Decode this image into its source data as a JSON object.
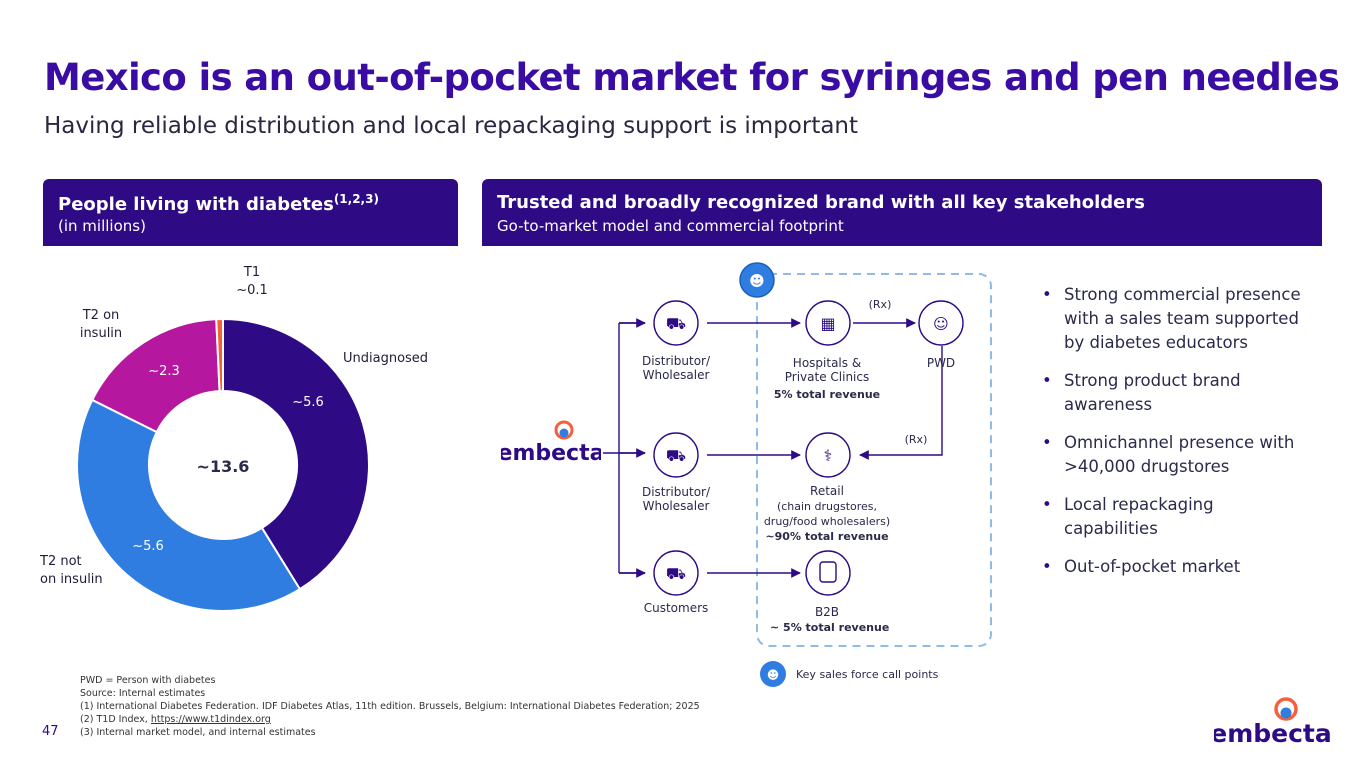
{
  "title": "Mexico is an out-of-pocket market for syringes and pen needles",
  "subtitle": "Having reliable distribution and local repackaging support is important",
  "left_panel": {
    "title": "People living with diabetes",
    "title_sup": "(1,2,3)",
    "subtitle": "(in millions)"
  },
  "right_panel": {
    "title": "Trusted and broadly recognized brand with all key stakeholders",
    "subtitle": "Go-to-market model and commercial footprint"
  },
  "chart_data": {
    "type": "pie",
    "center_label": "~13.6",
    "categories": [
      "Undiagnosed",
      "T2 not on insulin",
      "T2 on insulin",
      "T1"
    ],
    "values": [
      5.6,
      5.6,
      2.3,
      0.1
    ],
    "value_labels": [
      "~5.6",
      "~5.6",
      "~2.3",
      "~0.1"
    ],
    "colors": [
      "#2e0b85",
      "#2f7de1",
      "#b5179e",
      "#f4603c"
    ]
  },
  "slice_labels": {
    "undiagnosed": "Undiagnosed",
    "t2_not_1": "T2 not",
    "t2_not_2": "on insulin",
    "t2_on_1": "T2 on",
    "t2_on_2": "insulin",
    "t1": "T1"
  },
  "diagram": {
    "brand": "embecta",
    "dist1": [
      "Distributor/",
      "Wholesaler"
    ],
    "dist2": [
      "Distributor/",
      "Wholesaler"
    ],
    "customers": "Customers",
    "hospitals": [
      "Hospitals &",
      "Private Clinics"
    ],
    "hospitals_rev": "5% total revenue",
    "pwd": "PWD",
    "rx1": "(Rx)",
    "rx2": "(Rx)",
    "retail": "Retail",
    "retail_sub": [
      "(chain drugstores,",
      "drug/food wholesalers)"
    ],
    "retail_rev": "~90% total revenue",
    "b2b": "B2B",
    "b2b_rev": "~ 5% total revenue",
    "legend": "Key sales force call points"
  },
  "bullets": [
    [
      "Strong commercial presence",
      "with a sales team supported",
      "by diabetes educators"
    ],
    [
      "Strong product brand",
      "awareness"
    ],
    [
      "Omnichannel presence with",
      ">40,000 drugstores"
    ],
    [
      "Local repackaging",
      "capabilities"
    ],
    [
      "Out-of-pocket market"
    ]
  ],
  "footnotes": {
    "f0": "PWD = Person with diabetes",
    "f1": "Source: Internal estimates",
    "f2": "(1) International Diabetes Federation. IDF Diabetes Atlas, 11th edition. Brussels, Belgium: International Diabetes Federation; 2025",
    "f3_prefix": "(2) T1D Index,",
    "f3_link": "https://www.t1dindex.org",
    "f4": "(3) Internal market model, and internal estimates"
  },
  "page_number": "47",
  "logo_text": "embecta"
}
